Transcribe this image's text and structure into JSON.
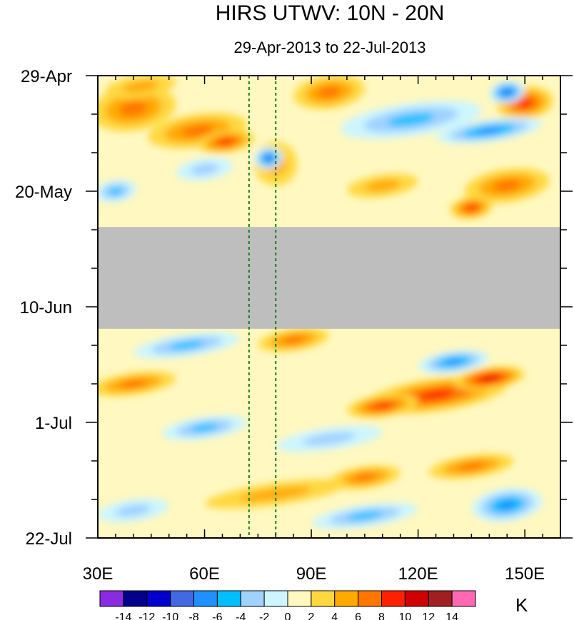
{
  "chart_data": {
    "type": "heatmap",
    "title": "HIRS UTWV: 10N - 20N",
    "subtitle": "29-Apr-2013 to 22-Jul-2013",
    "units": "K",
    "x_axis": {
      "range": [
        30,
        160
      ],
      "ticks": [
        {
          "value": 30,
          "label": "30E"
        },
        {
          "value": 60,
          "label": "60E"
        },
        {
          "value": 90,
          "label": "90E"
        },
        {
          "value": 120,
          "label": "120E"
        },
        {
          "value": 150,
          "label": "150E"
        }
      ]
    },
    "y_axis": {
      "range_days": [
        0,
        84
      ],
      "ticks": [
        {
          "value": 0,
          "label": "29-Apr"
        },
        {
          "value": 21,
          "label": "20-May"
        },
        {
          "value": 42,
          "label": "10-Jun"
        },
        {
          "value": 63,
          "label": "1-Jul"
        },
        {
          "value": 84,
          "label": "22-Jul"
        }
      ]
    },
    "missing_data_band_days": [
      27.5,
      46
    ],
    "reference_lines_lon": [
      72.5,
      80
    ],
    "colorbar": {
      "labels": [
        "-14",
        "-12",
        "-10",
        "-8",
        "-6",
        "-4",
        "-2",
        "0",
        "2",
        "4",
        "6",
        "8",
        "10",
        "12",
        "14"
      ],
      "colors": [
        "#8a2be2",
        "#00008b",
        "#0000cd",
        "#4169e1",
        "#1e90ff",
        "#00bfff",
        "#a0d2ff",
        "#ccf5ff",
        "#fff8c0",
        "#ffd840",
        "#ffaa00",
        "#ff7700",
        "#ff2000",
        "#d00000",
        "#a02020",
        "#ff69b4"
      ]
    },
    "anomaly_features": [
      {
        "lon": 40,
        "day": 6,
        "value": 6,
        "rx": 12,
        "ry": 4
      },
      {
        "lon": 58,
        "day": 10,
        "value": 6,
        "rx": 14,
        "ry": 3
      },
      {
        "lon": 66,
        "day": 12,
        "value": 8,
        "rx": 8,
        "ry": 2
      },
      {
        "lon": 42,
        "day": 2,
        "value": 4,
        "rx": 10,
        "ry": 2
      },
      {
        "lon": 95,
        "day": 3,
        "value": 6,
        "rx": 10,
        "ry": 3
      },
      {
        "lon": 150,
        "day": 5,
        "value": 8,
        "rx": 8,
        "ry": 3
      },
      {
        "lon": 145,
        "day": 20,
        "value": 6,
        "rx": 12,
        "ry": 3
      },
      {
        "lon": 135,
        "day": 24,
        "value": 8,
        "rx": 6,
        "ry": 2
      },
      {
        "lon": 110,
        "day": 20,
        "value": 4,
        "rx": 10,
        "ry": 2
      },
      {
        "lon": 80,
        "day": 16,
        "value": 4,
        "rx": 6,
        "ry": 4
      },
      {
        "lon": 78,
        "day": 15,
        "value": -10,
        "rx": 4,
        "ry": 2
      },
      {
        "lon": 118,
        "day": 8,
        "value": -6,
        "rx": 20,
        "ry": 3
      },
      {
        "lon": 140,
        "day": 10,
        "value": -8,
        "rx": 15,
        "ry": 2
      },
      {
        "lon": 145,
        "day": 3,
        "value": -10,
        "rx": 5,
        "ry": 2
      },
      {
        "lon": 35,
        "day": 21,
        "value": -6,
        "rx": 6,
        "ry": 2
      },
      {
        "lon": 60,
        "day": 17,
        "value": -4,
        "rx": 8,
        "ry": 2
      },
      {
        "lon": 40,
        "day": 56,
        "value": 6,
        "rx": 12,
        "ry": 2
      },
      {
        "lon": 125,
        "day": 58,
        "value": 8,
        "rx": 20,
        "ry": 3
      },
      {
        "lon": 140,
        "day": 55,
        "value": 10,
        "rx": 10,
        "ry": 2
      },
      {
        "lon": 110,
        "day": 60,
        "value": 8,
        "rx": 10,
        "ry": 2
      },
      {
        "lon": 85,
        "day": 48,
        "value": 6,
        "rx": 10,
        "ry": 2
      },
      {
        "lon": 105,
        "day": 73,
        "value": 6,
        "rx": 10,
        "ry": 2
      },
      {
        "lon": 135,
        "day": 71,
        "value": 6,
        "rx": 12,
        "ry": 2
      },
      {
        "lon": 80,
        "day": 76,
        "value": 4,
        "rx": 20,
        "ry": 2
      },
      {
        "lon": 55,
        "day": 49,
        "value": -6,
        "rx": 15,
        "ry": 2
      },
      {
        "lon": 130,
        "day": 52,
        "value": -8,
        "rx": 10,
        "ry": 2
      },
      {
        "lon": 145,
        "day": 78,
        "value": -8,
        "rx": 10,
        "ry": 3
      },
      {
        "lon": 105,
        "day": 80,
        "value": -6,
        "rx": 15,
        "ry": 2
      },
      {
        "lon": 60,
        "day": 64,
        "value": -6,
        "rx": 12,
        "ry": 2
      },
      {
        "lon": 40,
        "day": 79,
        "value": -4,
        "rx": 10,
        "ry": 2
      },
      {
        "lon": 95,
        "day": 66,
        "value": -4,
        "rx": 15,
        "ry": 2
      }
    ]
  }
}
